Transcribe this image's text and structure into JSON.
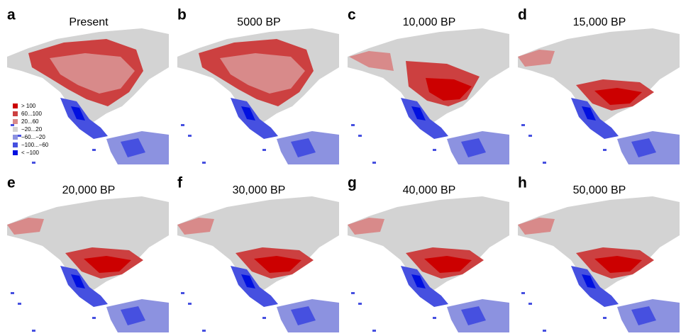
{
  "panels": [
    {
      "letter": "a",
      "title": "Present"
    },
    {
      "letter": "b",
      "title": "5000 BP"
    },
    {
      "letter": "c",
      "title": "10,000 BP"
    },
    {
      "letter": "d",
      "title": "15,000 BP"
    },
    {
      "letter": "e",
      "title": "20,000 BP"
    },
    {
      "letter": "f",
      "title": "30,000 BP"
    },
    {
      "letter": "g",
      "title": "40,000 BP"
    },
    {
      "letter": "h",
      "title": "50,000 BP"
    }
  ],
  "legend": [
    {
      "label": "> 100",
      "color": "#cc0000"
    },
    {
      "label": "60...100",
      "color": "#cc4040"
    },
    {
      "label": "20...60",
      "color": "#d88a8a"
    },
    {
      "label": "−20...20",
      "color": "#d3d3d3"
    },
    {
      "label": "−60...−20",
      "color": "#8c92e0"
    },
    {
      "label": "−100...−60",
      "color": "#4650e0"
    },
    {
      "label": "< −100",
      "color": "#0010e0"
    }
  ]
}
